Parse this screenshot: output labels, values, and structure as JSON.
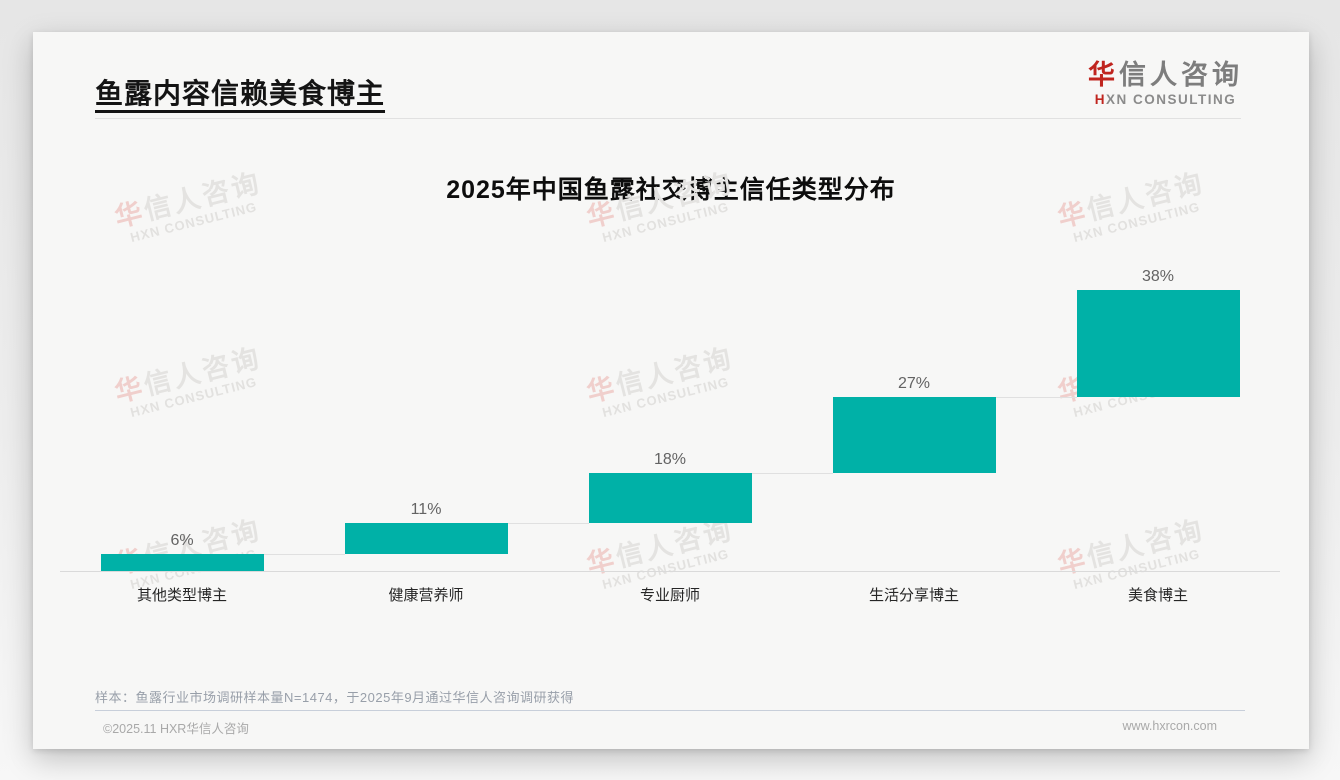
{
  "header": {
    "title": "鱼露内容信赖美食博主"
  },
  "logo": {
    "cn_accent": "华",
    "cn_rest": "信人咨询",
    "en_accent": "H",
    "en_rest": "XN CONSULTING"
  },
  "watermark": {
    "cn_accent": "华",
    "cn_rest": "信人咨询",
    "en": "HXN CONSULTING"
  },
  "chart_data": {
    "type": "bar",
    "subtype": "waterfall-cumulative",
    "title": "2025年中国鱼露社交博主信任类型分布",
    "categories": [
      "其他类型博主",
      "健康营养师",
      "专业厨师",
      "生活分享博主",
      "美食博主"
    ],
    "values": [
      6,
      11,
      18,
      27,
      38
    ],
    "data_labels": [
      "6%",
      "11%",
      "18%",
      "27%",
      "38%"
    ],
    "unit": "%",
    "ylim": [
      0,
      100
    ],
    "grid": false,
    "legend": "none",
    "bar_color": "#00b1a7",
    "connector_color": "#e0e0e0"
  },
  "footer": {
    "note": "样本：鱼露行业市场调研样本量N=1474，于2025年9月通过华信人咨询调研获得",
    "copyright": "©2025.11 HXR华信人咨询",
    "website": "www.hxrcon.com"
  }
}
